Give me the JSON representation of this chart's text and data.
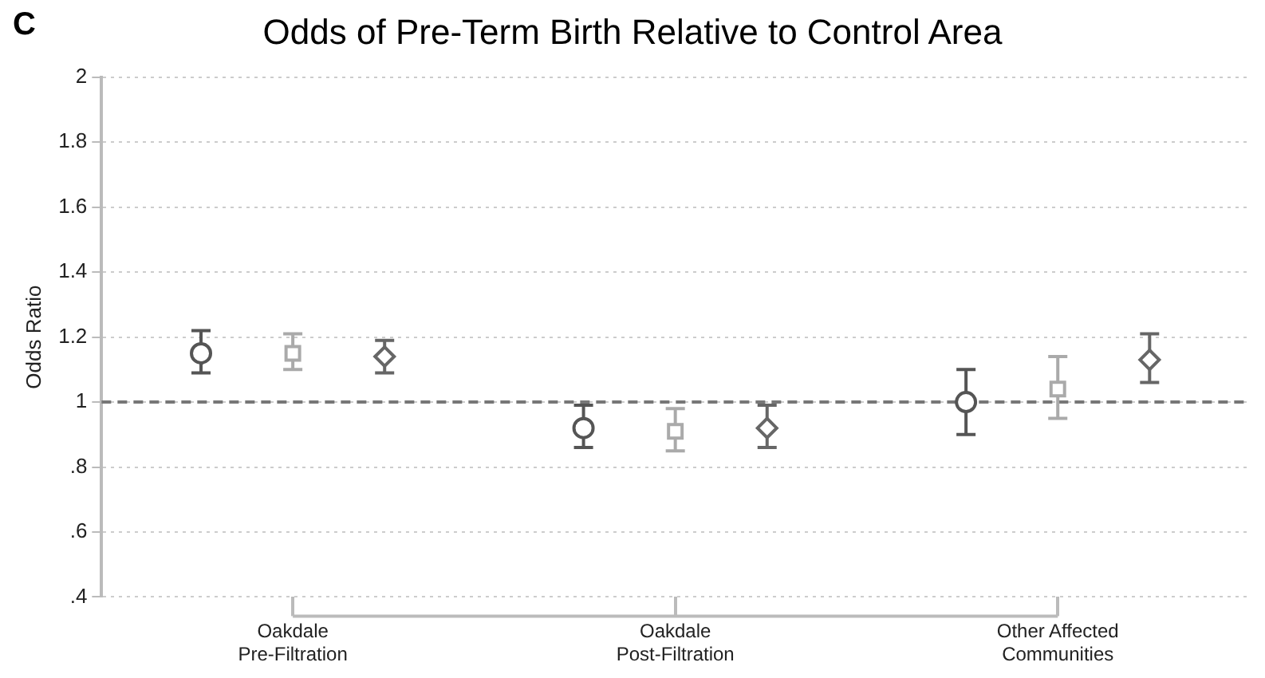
{
  "chart_data": {
    "type": "scatter",
    "title": "Odds of Pre-Term Birth Relative to Control Area",
    "annotations": [
      "C"
    ],
    "ylabel": "Odds Ratio",
    "categories": [
      "Oakdale Pre-Filtration",
      "Oakdale Post-Filtration",
      "Other Affected Communities"
    ],
    "series": [
      {
        "color": "#555555",
        "marker": "circle",
        "values": [
          1.15,
          0.92,
          1.0
        ],
        "errors": [
          [
            1.09,
            1.22
          ],
          [
            0.86,
            0.99
          ],
          [
            0.9,
            1.1
          ]
        ]
      },
      {
        "color": "#aaaaaa",
        "marker": "square",
        "values": [
          1.15,
          0.91,
          1.04
        ],
        "errors": [
          [
            1.1,
            1.21
          ],
          [
            0.85,
            0.98
          ],
          [
            0.95,
            1.14
          ]
        ]
      },
      {
        "color": "#666666",
        "marker": "diamond",
        "values": [
          1.14,
          0.92,
          1.13
        ],
        "errors": [
          [
            1.09,
            1.19
          ],
          [
            0.86,
            0.99
          ],
          [
            1.06,
            1.21
          ]
        ]
      }
    ],
    "ylim": [
      0.4,
      2
    ],
    "yticks": [
      {
        "value": 0.4,
        "label": ".4"
      },
      {
        "value": 0.6,
        "label": ".6"
      },
      {
        "value": 0.8,
        "label": ".8"
      },
      1,
      1.2,
      1.4,
      1.6,
      1.8,
      2
    ],
    "ref_lines": [
      {
        "axis": "y",
        "value": 1,
        "color": "#777777",
        "line_style": "dashed"
      }
    ],
    "grid": "y",
    "legend": false
  }
}
